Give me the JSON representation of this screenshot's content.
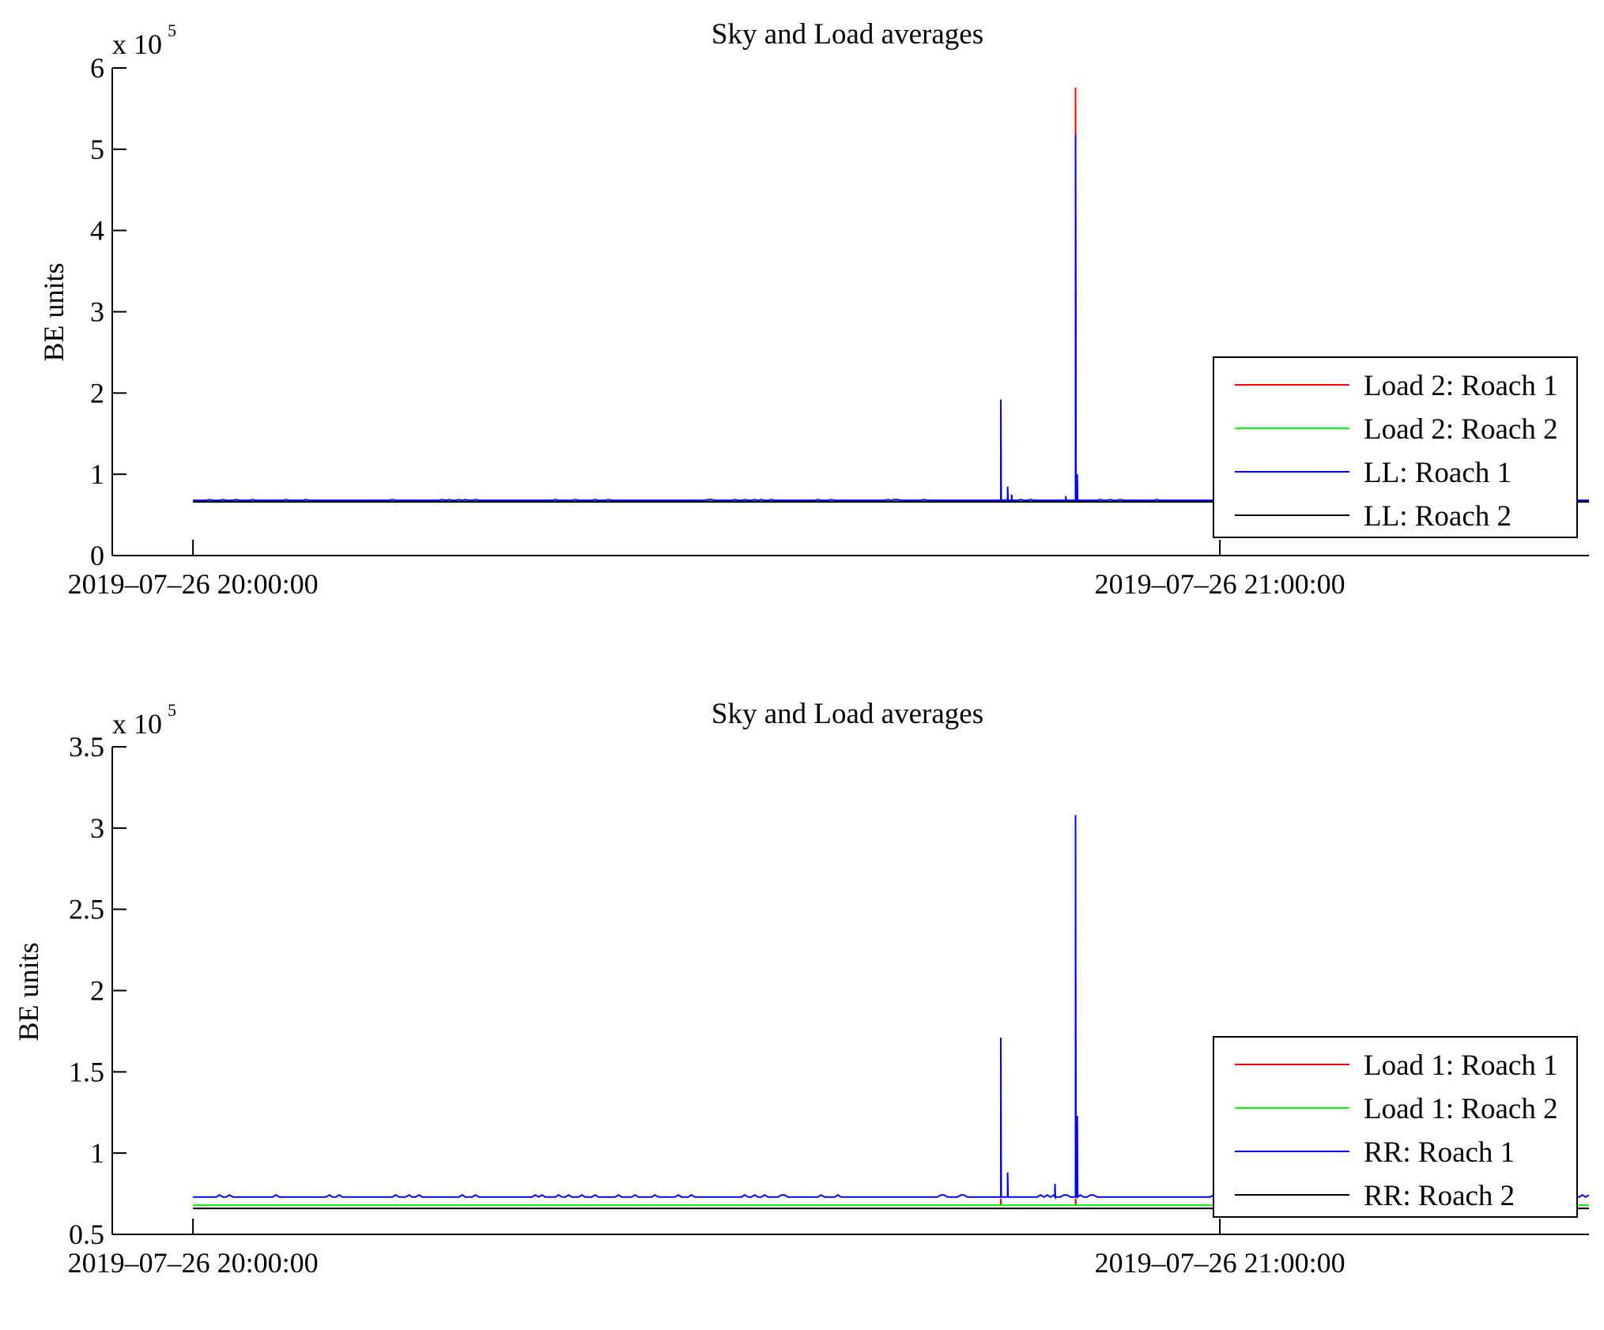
{
  "chart_data": [
    {
      "type": "line",
      "title": "Sky and Load averages",
      "ylabel": "BE units",
      "y_multiplier": {
        "base": "x 10",
        "exponent": "5"
      },
      "ylim": [
        0,
        6
      ],
      "yticks": [
        "0",
        "1",
        "2",
        "3",
        "4",
        "5",
        "6"
      ],
      "xlim": [
        "2019-07-26 19:55:17",
        "2019-07-26 21:21:34"
      ],
      "xticks": [
        {
          "value": "2019-07-26 20:00:00",
          "label": "2019–07–26 20:00:00"
        },
        {
          "value": "2019-07-26 21:00:00",
          "label": "2019–07–26 21:00:00"
        }
      ],
      "x_range": [
        "2019-07-26 20:00:00",
        "2019-07-26 21:21:34"
      ],
      "legend": {
        "position": "bottom-right"
      },
      "series": [
        {
          "name": "Load 2: Roach 1",
          "color": "#ff0000",
          "baseline": 0.67,
          "spikes": [
            [
              "2019-07-26 20:51:34",
              5.76
            ]
          ]
        },
        {
          "name": "Load 2: Roach 2",
          "color": "#00ff00",
          "baseline": 0.67,
          "spikes": []
        },
        {
          "name": "LL: Roach 1",
          "color": "#0000ff",
          "baseline": 0.68,
          "spikes": [
            [
              "2019-07-26 20:47:12",
              1.92
            ],
            [
              "2019-07-26 20:47:36",
              0.85
            ],
            [
              "2019-07-26 20:47:50",
              0.75
            ],
            [
              "2019-07-26 20:51:00",
              0.73
            ],
            [
              "2019-07-26 20:51:34",
              5.18
            ],
            [
              "2019-07-26 20:51:40",
              1.0
            ]
          ]
        },
        {
          "name": "LL: Roach 2",
          "color": "#000000",
          "baseline": 0.66,
          "spikes": []
        }
      ]
    },
    {
      "type": "line",
      "title": "Sky and Load averages",
      "ylabel": "BE units",
      "y_multiplier": {
        "base": "x 10",
        "exponent": "5"
      },
      "ylim": [
        0.5,
        3.5
      ],
      "yticks": [
        "0.5",
        "1",
        "1.5",
        "2",
        "2.5",
        "3",
        "3.5"
      ],
      "xlim": [
        "2019-07-26 19:55:17",
        "2019-07-26 21:21:34"
      ],
      "xticks": [
        {
          "value": "2019-07-26 20:00:00",
          "label": "2019–07–26 20:00:00"
        },
        {
          "value": "2019-07-26 21:00:00",
          "label": "2019–07–26 21:00:00"
        }
      ],
      "x_range": [
        "2019-07-26 20:00:00",
        "2019-07-26 21:21:34"
      ],
      "legend": {
        "position": "bottom-right"
      },
      "series": [
        {
          "name": "Load 1: Roach 1",
          "color": "#ff0000",
          "baseline": 0.68,
          "spikes": [
            [
              "2019-07-26 20:47:12",
              0.72
            ],
            [
              "2019-07-26 20:51:34",
              0.72
            ]
          ]
        },
        {
          "name": "Load 1: Roach 2",
          "color": "#00ff00",
          "baseline": 0.68,
          "spikes": []
        },
        {
          "name": "RR: Roach 1",
          "color": "#0000ff",
          "baseline": 0.73,
          "spikes": [
            [
              "2019-07-26 20:47:12",
              1.71
            ],
            [
              "2019-07-26 20:47:36",
              0.88
            ],
            [
              "2019-07-26 20:50:22",
              0.81
            ],
            [
              "2019-07-26 20:51:34",
              3.08
            ],
            [
              "2019-07-26 20:51:40",
              1.23
            ]
          ]
        },
        {
          "name": "RR: Roach 2",
          "color": "#000000",
          "baseline": 0.66,
          "spikes": []
        }
      ]
    }
  ]
}
